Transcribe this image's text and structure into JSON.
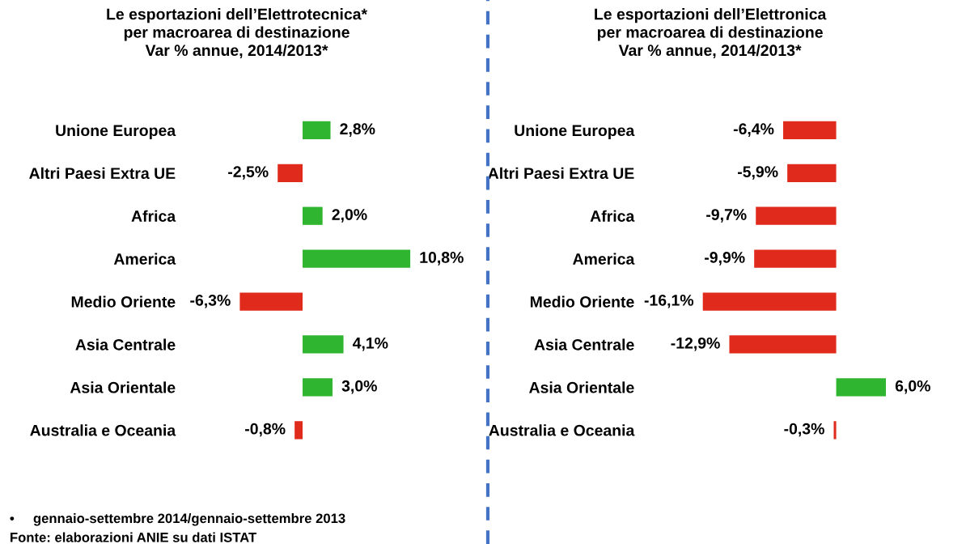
{
  "chart_data": [
    {
      "type": "bar",
      "orientation": "horizontal",
      "title": "Le esportazioni dell’Elettrotecnica*\nper macroarea di destinazione\nVar % annue, 2014/2013*",
      "categories": [
        "Unione Europea",
        "Altri Paesi Extra UE",
        "Africa",
        "America",
        "Medio Oriente",
        "Asia Centrale",
        "Asia Orientale",
        "Australia e Oceania"
      ],
      "values": [
        2.8,
        -2.5,
        2.0,
        10.8,
        -6.3,
        4.1,
        3.0,
        -0.8
      ],
      "value_labels": [
        "2,8%",
        "-2,5%",
        "2,0%",
        "10,8%",
        "-6,3%",
        "4,1%",
        "3,0%",
        "-0,8%"
      ],
      "colors": [
        "#2fb52f",
        "#e02a1c",
        "#2fb52f",
        "#2fb52f",
        "#e02a1c",
        "#2fb52f",
        "#2fb52f",
        "#e02a1c"
      ],
      "tick_labels": "y",
      "grid": false,
      "legend": false,
      "annotations": [
        "•     gennaio-settembre 2014/gennaio-settembre 2013",
        "Fonte: elaborazioni ANIE su dati ISTAT"
      ]
    },
    {
      "type": "bar",
      "orientation": "horizontal",
      "title": "Le esportazioni dell’Elettronica\nper macroarea di destinazione\nVar % annue, 2014/2013*",
      "categories": [
        "Unione Europea",
        "Altri Paesi Extra UE",
        "Africa",
        "America",
        "Medio Oriente",
        "Asia Centrale",
        "Asia Orientale",
        "Australia e Oceania"
      ],
      "values": [
        -6.4,
        -5.9,
        -9.7,
        -9.9,
        -16.1,
        -12.9,
        6.0,
        -0.3
      ],
      "value_labels": [
        "-6,4%",
        "-5,9%",
        "-9,7%",
        "-9,9%",
        "-16,1%",
        "-12,9%",
        "6,0%",
        "-0,3%"
      ],
      "colors": [
        "#e02a1c",
        "#e02a1c",
        "#e02a1c",
        "#e02a1c",
        "#e02a1c",
        "#e02a1c",
        "#2fb52f",
        "#e02a1c"
      ],
      "tick_labels": "y",
      "grid": false,
      "legend": false
    }
  ]
}
